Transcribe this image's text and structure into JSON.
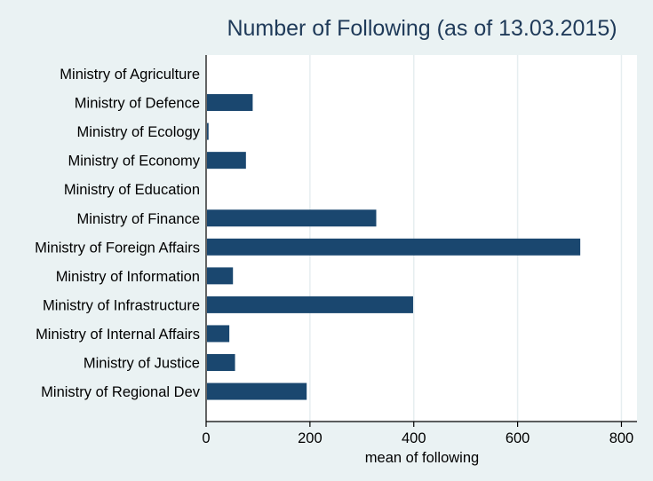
{
  "chart_data": {
    "type": "bar",
    "orientation": "horizontal",
    "title": "Number of Following (as of 13.03.2015)",
    "xlabel": "mean of following",
    "ylabel": "",
    "xlim": [
      0,
      830
    ],
    "xticks": [
      0,
      200,
      400,
      600,
      800
    ],
    "grid": true,
    "categories": [
      "Ministry of Agriculture",
      "Ministry of Defence",
      "Ministry of Ecology",
      "Ministry of Economy",
      "Ministry of Education",
      "Ministry of Finance",
      "Ministry of Foreign Affairs",
      "Ministry of Information",
      "Ministry of Infrastructure",
      "Ministry of Internal Affairs",
      "Ministry of Justice",
      "Ministry of Regional Dev"
    ],
    "values": [
      0,
      88,
      3,
      75,
      0,
      326,
      719,
      50,
      397,
      43,
      54,
      192
    ]
  },
  "colors": {
    "bar": "#1a476f",
    "title": "#1f3a59",
    "background": "#eaf2f3",
    "plot_background": "#ffffff",
    "grid": "#e6eef0",
    "axis": "#000000"
  }
}
